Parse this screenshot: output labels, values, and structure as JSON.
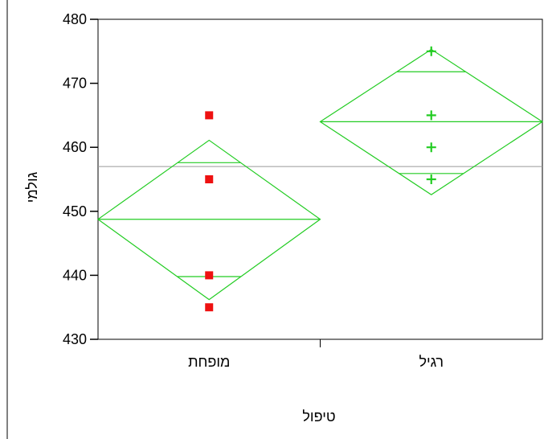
{
  "chart_data": {
    "type": "scatter",
    "subtype": "means-diamonds",
    "xlabel": "טיפול",
    "ylabel": "גולמי",
    "ylim": [
      430,
      480
    ],
    "yticks": [
      430,
      440,
      450,
      460,
      470,
      480
    ],
    "yticks_labels": [
      "430",
      "440",
      "450",
      "460",
      "470",
      "480"
    ],
    "categories": [
      "מופחת",
      "רגיל"
    ],
    "grand_mean": 457,
    "colors": {
      "diamond": "#22cc22",
      "grand_mean_line": "#999999",
      "axis": "#000000"
    },
    "groups": [
      {
        "category": "מופחת",
        "marker": "square",
        "marker_color": "#ee1111",
        "values": [
          465,
          455,
          440,
          435
        ],
        "mean": 448.75,
        "ci_upper": 461.1,
        "ci_lower": 436.2,
        "overlap_upper": 457.6,
        "overlap_lower": 439.8
      },
      {
        "category": "רגיל",
        "marker": "plus",
        "marker_color": "#22cc22",
        "values": [
          475,
          465,
          460,
          455
        ],
        "mean": 464,
        "ci_upper": 475.3,
        "ci_lower": 452.6,
        "overlap_upper": 471.8,
        "overlap_lower": 455.9
      }
    ]
  }
}
